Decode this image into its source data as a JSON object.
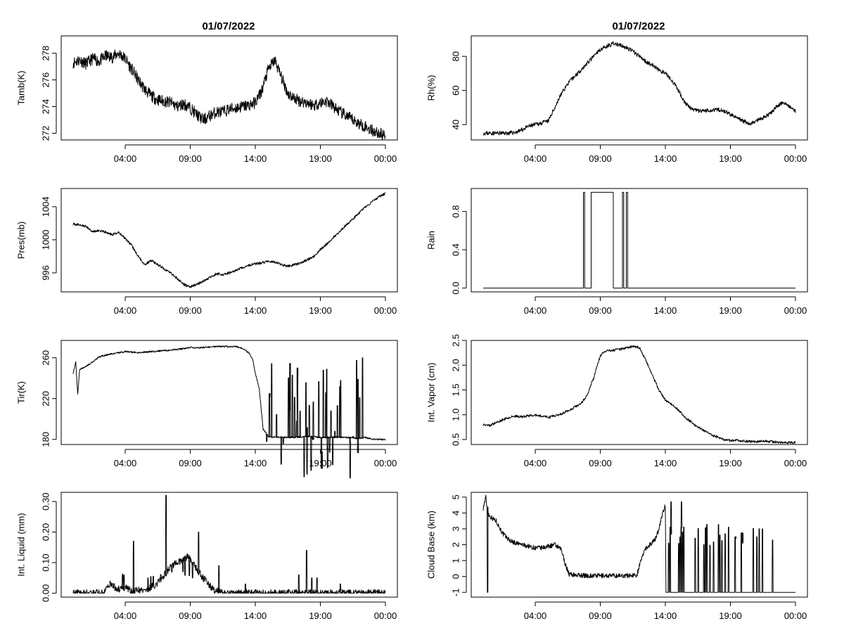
{
  "figure_titles": [
    "01/07/2022",
    "01/07/2022"
  ],
  "chart_data": [
    {
      "id": "tamb",
      "type": "line",
      "title": "01/07/2022",
      "ylabel": "Tamb(K)",
      "xticks": [
        "04:00",
        "09:00",
        "14:00",
        "19:00",
        "00:00"
      ],
      "xlim": [
        0,
        24
      ],
      "ylim": [
        271.5,
        279.3
      ],
      "yticks": [
        272,
        274,
        276,
        278
      ],
      "ytick_labels": [
        "272",
        "274",
        "276",
        "278"
      ],
      "series": [
        {
          "name": "Tamb",
          "x": [
            0,
            0.5,
            1,
            1.5,
            2,
            2.5,
            3,
            3.5,
            4,
            4.5,
            5,
            5.5,
            6,
            6.5,
            7,
            7.5,
            8,
            8.5,
            9,
            9.5,
            10,
            10.5,
            11,
            11.5,
            12,
            12.5,
            13,
            13.5,
            14,
            14.5,
            15,
            15.5,
            16,
            16.5,
            17,
            17.5,
            18,
            18.5,
            19,
            19.5,
            20,
            20.5,
            21,
            21.5,
            22,
            22.5,
            23,
            23.5,
            24
          ],
          "y": [
            277.3,
            277.5,
            277.2,
            277.6,
            277.4,
            277.8,
            277.7,
            278.0,
            277.6,
            276.8,
            276.0,
            275.3,
            274.8,
            274.5,
            274.4,
            274.3,
            274.0,
            274.2,
            273.9,
            273.4,
            273.0,
            273.3,
            273.6,
            273.6,
            273.8,
            273.9,
            274.0,
            274.1,
            274.3,
            275.2,
            276.8,
            277.5,
            276.2,
            275.0,
            274.6,
            274.4,
            274.3,
            274.1,
            274.3,
            274.4,
            274.0,
            273.6,
            273.3,
            273.0,
            272.7,
            272.5,
            272.2,
            272.0,
            271.8
          ],
          "noise": 0.45,
          "seed": 11
        }
      ],
      "panel": {
        "col": 0,
        "row": 0
      }
    },
    {
      "id": "rh",
      "type": "line",
      "title": "01/07/2022",
      "ylabel": "Rh(%)",
      "xticks": [
        "04:00",
        "09:00",
        "14:00",
        "19:00",
        "00:00"
      ],
      "xlim": [
        0,
        24
      ],
      "ylim": [
        31,
        92
      ],
      "yticks": [
        40,
        60,
        80
      ],
      "ytick_labels": [
        "40",
        "60",
        "80"
      ],
      "series": [
        {
          "name": "Rh",
          "x": [
            0,
            0.5,
            1,
            1.5,
            2,
            2.5,
            3,
            3.5,
            4,
            4.5,
            5,
            5.5,
            6,
            6.5,
            7,
            7.5,
            8,
            8.5,
            9,
            9.5,
            10,
            10.5,
            11,
            11.5,
            12,
            12.5,
            13,
            13.5,
            14,
            14.5,
            15,
            15.5,
            16,
            16.5,
            17,
            17.5,
            18,
            18.5,
            19,
            19.5,
            20,
            20.5,
            21,
            21.5,
            22,
            22.5,
            23,
            23.5,
            24
          ],
          "y": [
            35,
            35,
            35,
            35,
            35,
            35.5,
            37,
            39,
            40,
            41,
            42,
            50,
            58,
            64,
            68,
            72,
            76,
            80,
            84,
            86,
            87.5,
            86.5,
            85,
            83,
            80,
            77,
            75,
            72,
            70,
            66,
            60,
            53,
            49,
            48,
            48,
            48.5,
            49,
            48,
            46,
            44,
            42,
            40.5,
            42,
            44,
            46,
            50,
            53,
            51,
            48
          ],
          "noise": 1.2,
          "seed": 23
        }
      ],
      "panel": {
        "col": 1,
        "row": 0
      }
    },
    {
      "id": "pres",
      "type": "line",
      "title": "",
      "ylabel": "Pres(mb)",
      "xticks": [
        "04:00",
        "09:00",
        "14:00",
        "19:00",
        "00:00"
      ],
      "xlim": [
        0,
        24
      ],
      "ylim": [
        993.7,
        1006.2
      ],
      "yticks": [
        996,
        1000,
        1004
      ],
      "ytick_labels": [
        "996",
        "1000",
        "1004"
      ],
      "series": [
        {
          "name": "Pres",
          "x": [
            0,
            0.5,
            1,
            1.5,
            2,
            2.5,
            3,
            3.5,
            4,
            4.5,
            5,
            5.5,
            6,
            6.5,
            7,
            7.5,
            8,
            8.5,
            9,
            9.5,
            10,
            10.5,
            11,
            11.5,
            12,
            12.5,
            13,
            13.5,
            14,
            14.5,
            15,
            15.5,
            16,
            16.5,
            17,
            17.5,
            18,
            18.5,
            19,
            19.5,
            20,
            20.5,
            21,
            21.5,
            22,
            22.5,
            23,
            23.5,
            24
          ],
          "y": [
            1001.9,
            1001.8,
            1001.6,
            1001.0,
            1001.1,
            1000.9,
            1000.6,
            1000.9,
            1000.2,
            999.3,
            998.0,
            997.0,
            997.5,
            997.0,
            996.5,
            996.0,
            995.3,
            994.6,
            994.3,
            994.6,
            995.0,
            995.4,
            995.9,
            995.8,
            996.0,
            996.3,
            996.6,
            996.9,
            997.1,
            997.2,
            997.4,
            997.3,
            997.0,
            996.8,
            997.0,
            997.2,
            997.6,
            998.0,
            998.8,
            999.5,
            1000.3,
            1001.0,
            1001.8,
            1002.5,
            1003.3,
            1004.0,
            1004.6,
            1005.2,
            1005.6
          ],
          "noise": 0.15,
          "seed": 37
        }
      ],
      "panel": {
        "col": 0,
        "row": 1
      }
    },
    {
      "id": "rain",
      "type": "line",
      "title": "",
      "ylabel": "Rain",
      "xticks": [
        "04:00",
        "09:00",
        "14:00",
        "19:00",
        "00:00"
      ],
      "xlim": [
        0,
        24
      ],
      "ylim": [
        -0.04,
        1.04
      ],
      "yticks": [
        0.0,
        0.4,
        0.8
      ],
      "ytick_labels": [
        "0.0",
        "0.4",
        "0.8"
      ],
      "series": [
        {
          "name": "Rain",
          "x": [
            0,
            7.7,
            7.7,
            7.8,
            7.8,
            8.3,
            8.3,
            10.0,
            10.0,
            10.7,
            10.7,
            10.8,
            10.8,
            11.0,
            11.0,
            11.1,
            11.1,
            24
          ],
          "y": [
            0,
            0,
            1,
            1,
            0,
            0,
            1,
            1,
            0,
            0,
            1,
            1,
            0,
            0,
            1,
            1,
            0,
            0
          ],
          "noise": 0,
          "seed": 0
        }
      ],
      "panel": {
        "col": 1,
        "row": 1
      }
    },
    {
      "id": "tir",
      "type": "line",
      "title": "",
      "ylabel": "Tir(K)",
      "xticks": [
        "04:00",
        "09:00",
        "14:00",
        "19:00",
        "00:00"
      ],
      "xlim": [
        0,
        24
      ],
      "ylim": [
        175,
        277
      ],
      "yticks": [
        180,
        220,
        260
      ],
      "ytick_labels": [
        "180",
        "220",
        "260"
      ],
      "series": [
        {
          "name": "Tir",
          "x": [
            0,
            0.2,
            0.35,
            0.5,
            0.8,
            1.5,
            2,
            3,
            4,
            5,
            6,
            7,
            8,
            9,
            10,
            11,
            12,
            12.5,
            13,
            13.5,
            13.8,
            14.0,
            14.3,
            14.6,
            15.0,
            15.5,
            16,
            17,
            18,
            19,
            20,
            21,
            22,
            22.5,
            23,
            24
          ],
          "y": [
            245,
            256,
            224,
            249,
            250,
            256,
            261,
            264,
            266,
            265,
            266,
            267,
            268,
            270,
            270,
            271,
            271,
            271,
            269,
            265,
            258,
            245,
            230,
            190,
            183,
            182,
            182,
            182,
            183,
            182,
            182,
            182,
            181,
            182,
            180,
            180
          ],
          "noise": 0.8,
          "seed": 51,
          "spikes": {
            "start": 14.8,
            "end": 22.0,
            "count": 46,
            "high": 258,
            "extra": [
              {
                "x": 22.2,
                "y": 260
              }
            ]
          }
        }
      ],
      "panel": {
        "col": 0,
        "row": 2
      }
    },
    {
      "id": "vapor",
      "type": "line",
      "title": "",
      "ylabel": "Int. Vapor (cm)",
      "xticks": [
        "04:00",
        "09:00",
        "14:00",
        "19:00",
        "00:00"
      ],
      "xlim": [
        0,
        24
      ],
      "ylim": [
        0.4,
        2.5
      ],
      "yticks": [
        0.5,
        1.0,
        1.5,
        2.0,
        2.5
      ],
      "ytick_labels": [
        "0.5",
        "1.0",
        "1.5",
        "2.0",
        "2.5"
      ],
      "series": [
        {
          "name": "Int. Vapor",
          "x": [
            0,
            0.5,
            1,
            1.5,
            2,
            2.5,
            3,
            3.5,
            4,
            4.5,
            5,
            5.5,
            6,
            6.5,
            7,
            7.5,
            8,
            8.5,
            9,
            9.5,
            10,
            10.5,
            11,
            11.5,
            12,
            12.5,
            13,
            13.5,
            14,
            14.5,
            15,
            15.5,
            16,
            16.5,
            17,
            17.5,
            18,
            18.5,
            19,
            19.5,
            20,
            20.5,
            21,
            21.5,
            22,
            22.5,
            23,
            23.5,
            24
          ],
          "y": [
            0.8,
            0.78,
            0.84,
            0.9,
            0.95,
            0.97,
            0.96,
            0.98,
            0.99,
            0.97,
            0.95,
            0.98,
            1.02,
            1.08,
            1.15,
            1.22,
            1.4,
            1.75,
            2.2,
            2.3,
            2.3,
            2.32,
            2.35,
            2.38,
            2.36,
            2.1,
            1.8,
            1.5,
            1.3,
            1.2,
            1.1,
            0.95,
            0.85,
            0.75,
            0.68,
            0.6,
            0.55,
            0.5,
            0.48,
            0.48,
            0.47,
            0.46,
            0.46,
            0.47,
            0.46,
            0.45,
            0.44,
            0.44,
            0.44
          ],
          "noise": 0.025,
          "seed": 67
        }
      ],
      "panel": {
        "col": 1,
        "row": 2
      }
    },
    {
      "id": "liquid",
      "type": "line",
      "title": "",
      "ylabel": "Int. Liquid (mm)",
      "xticks": [
        "04:00",
        "09:00",
        "14:00",
        "19:00",
        "00:00"
      ],
      "xlim": [
        0,
        24
      ],
      "ylim": [
        -0.013,
        0.33
      ],
      "yticks": [
        0.0,
        0.1,
        0.2,
        0.3
      ],
      "ytick_labels": [
        "0.00",
        "0.10",
        "0.20",
        "0.30"
      ],
      "series": [
        {
          "name": "Int. Liquid",
          "x": [
            0,
            2.3,
            2.5,
            2.8,
            3.2,
            3.6,
            4.0,
            4.4,
            4.7,
            5.0,
            5.5,
            6.0,
            6.4,
            6.8,
            7.2,
            7.6,
            8.0,
            8.4,
            8.8,
            9.2,
            9.6,
            10.0,
            10.4,
            10.8,
            11.2,
            11.6,
            24
          ],
          "y": [
            0,
            0,
            0.01,
            0.03,
            0.02,
            0.01,
            0.02,
            0.01,
            0.005,
            0.01,
            0.01,
            0.02,
            0.03,
            0.05,
            0.07,
            0.09,
            0.1,
            0.11,
            0.12,
            0.1,
            0.07,
            0.05,
            0.03,
            0.01,
            0.005,
            0,
            0
          ],
          "noise": 0.012,
          "seed": 83,
          "spikes": {
            "start": 2.3,
            "end": 11.5,
            "count": 14,
            "high": 0.09,
            "extra": [
              {
                "x": 4.6,
                "y": 0.17
              },
              {
                "x": 7.1,
                "y": 0.32
              },
              {
                "x": 9.6,
                "y": 0.2
              },
              {
                "x": 13.2,
                "y": 0.03
              },
              {
                "x": 17.3,
                "y": 0.06
              },
              {
                "x": 17.9,
                "y": 0.14
              },
              {
                "x": 18.3,
                "y": 0.05
              },
              {
                "x": 18.7,
                "y": 0.05
              },
              {
                "x": 20.5,
                "y": 0.03
              },
              {
                "x": 21.2,
                "y": 0.01
              }
            ],
            "base_only": true
          }
        }
      ],
      "panel": {
        "col": 0,
        "row": 3
      }
    },
    {
      "id": "cloudbase",
      "type": "line",
      "title": "",
      "ylabel": "Cloud Base (km)",
      "xticks": [
        "04:00",
        "09:00",
        "14:00",
        "19:00",
        "00:00"
      ],
      "xlim": [
        0,
        24
      ],
      "ylim": [
        -1.3,
        5.3
      ],
      "yticks": [
        -1,
        0,
        1,
        2,
        3,
        4,
        5
      ],
      "ytick_labels": [
        "-1",
        "0",
        "1",
        "2",
        "3",
        "4",
        "5"
      ],
      "series": [
        {
          "name": "Cloud Base",
          "x": [
            0,
            0.2,
            0.35,
            0.5,
            1,
            1.5,
            2,
            2.5,
            3,
            3.5,
            4,
            4.5,
            5,
            5.5,
            5.8,
            6,
            6.3,
            6.6,
            7,
            8,
            9,
            10,
            11,
            11.8,
            12.4,
            12.8,
            13.2,
            13.5,
            13.8,
            14.0
          ],
          "y": [
            4.3,
            5.0,
            4.0,
            3.8,
            3.5,
            2.7,
            2.3,
            2.1,
            2.0,
            1.9,
            1.8,
            1.8,
            1.9,
            2.0,
            1.8,
            1.7,
            0.8,
            0.15,
            0.1,
            0.05,
            0.05,
            0.05,
            0.05,
            0.1,
            1.7,
            2.0,
            2.3,
            3.0,
            4.0,
            4.5
          ],
          "noise": 0.15,
          "seed": 97,
          "after": {
            "start": 14.0,
            "end": 24,
            "base": -1.0
          },
          "spikes": {
            "start": 14.2,
            "end": 21.5,
            "count": 30,
            "high": 3.3,
            "extra": [
              {
                "x": 14.4,
                "y": 4.7
              },
              {
                "x": 15.2,
                "y": 4.7
              },
              {
                "x": 22.2,
                "y": 2.3
              },
              {
                "x": 0.3,
                "y": -1.0
              }
            ],
            "base_only": true
          }
        }
      ],
      "panel": {
        "col": 1,
        "row": 3
      }
    }
  ]
}
